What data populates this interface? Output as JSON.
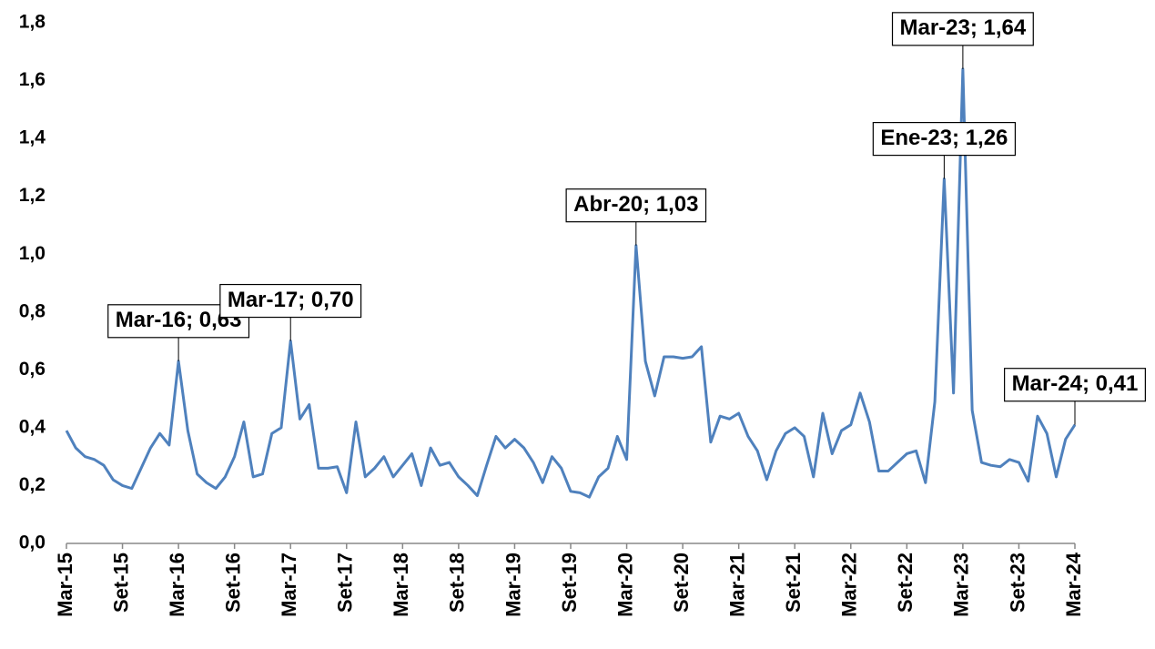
{
  "chart_data": {
    "type": "line",
    "categories": [
      "Mar-15",
      null,
      null,
      null,
      null,
      null,
      "Set-15",
      null,
      null,
      null,
      null,
      null,
      "Mar-16",
      null,
      null,
      null,
      null,
      null,
      "Set-16",
      null,
      null,
      null,
      null,
      null,
      "Mar-17",
      null,
      null,
      null,
      null,
      null,
      "Set-17",
      null,
      null,
      null,
      null,
      null,
      "Mar-18",
      null,
      null,
      null,
      null,
      null,
      "Set-18",
      null,
      null,
      null,
      null,
      null,
      "Mar-19",
      null,
      null,
      null,
      null,
      null,
      "Set-19",
      null,
      null,
      null,
      null,
      null,
      "Mar-20",
      null,
      null,
      null,
      null,
      null,
      "Set-20",
      null,
      null,
      null,
      null,
      null,
      "Mar-21",
      null,
      null,
      null,
      null,
      null,
      "Set-21",
      null,
      null,
      null,
      null,
      null,
      "Mar-22",
      null,
      null,
      null,
      null,
      null,
      "Set-22",
      null,
      null,
      null,
      null,
      null,
      "Mar-23",
      null,
      null,
      null,
      null,
      null,
      "Set-23",
      null,
      null,
      null,
      null,
      null,
      "Mar-24"
    ],
    "series": [
      {
        "color": "#4f81bd",
        "values": [
          0.39,
          0.33,
          0.3,
          0.29,
          0.27,
          0.22,
          0.2,
          0.19,
          0.26,
          0.33,
          0.38,
          0.34,
          0.63,
          0.39,
          0.24,
          0.21,
          0.19,
          0.23,
          0.3,
          0.42,
          0.23,
          0.24,
          0.38,
          0.4,
          0.7,
          0.43,
          0.48,
          0.26,
          0.26,
          0.265,
          0.175,
          0.42,
          0.23,
          0.26,
          0.3,
          0.23,
          0.27,
          0.31,
          0.2,
          0.33,
          0.27,
          0.28,
          0.23,
          0.2,
          0.165,
          0.27,
          0.37,
          0.33,
          0.36,
          0.33,
          0.28,
          0.21,
          0.3,
          0.26,
          0.18,
          0.175,
          0.16,
          0.23,
          0.26,
          0.37,
          0.29,
          1.03,
          0.63,
          0.51,
          0.645,
          0.645,
          0.64,
          0.645,
          0.68,
          0.35,
          0.44,
          0.43,
          0.45,
          0.37,
          0.32,
          0.22,
          0.32,
          0.38,
          0.4,
          0.37,
          0.23,
          0.45,
          0.31,
          0.39,
          0.41,
          0.52,
          0.42,
          0.25,
          0.25,
          0.28,
          0.31,
          0.32,
          0.21,
          0.49,
          1.26,
          0.52,
          1.64,
          0.46,
          0.28,
          0.27,
          0.265,
          0.29,
          0.28,
          0.215,
          0.44,
          0.38,
          0.23,
          0.36,
          0.41
        ],
        "value_labels": [
          null,
          null,
          null,
          null,
          null,
          null,
          null,
          null,
          null,
          null,
          null,
          null,
          "Mar-16; 0,63",
          null,
          null,
          null,
          null,
          null,
          null,
          null,
          null,
          null,
          null,
          null,
          "Mar-17; 0,70",
          null,
          null,
          null,
          null,
          null,
          null,
          null,
          null,
          null,
          null,
          null,
          null,
          null,
          null,
          null,
          null,
          null,
          null,
          null,
          null,
          null,
          null,
          null,
          null,
          null,
          null,
          null,
          null,
          null,
          null,
          null,
          null,
          null,
          null,
          null,
          null,
          "Abr-20; 1,03",
          null,
          null,
          null,
          null,
          null,
          null,
          null,
          null,
          null,
          null,
          null,
          null,
          null,
          null,
          null,
          null,
          null,
          null,
          null,
          null,
          null,
          null,
          null,
          null,
          null,
          null,
          null,
          null,
          null,
          null,
          null,
          null,
          "Ene-23; 1,26",
          null,
          "Mar-23; 1,64",
          null,
          null,
          null,
          null,
          null,
          null,
          null,
          null,
          null,
          null,
          null,
          "Mar-24; 0,41"
        ]
      }
    ],
    "ylim": [
      0,
      1.8
    ],
    "yticks": [
      {
        "value": 0,
        "label": "0,0"
      },
      {
        "value": 0.2,
        "label": "0,2"
      },
      {
        "value": 0.4,
        "label": "0,4"
      },
      {
        "value": 0.6,
        "label": "0,6"
      },
      {
        "value": 0.8,
        "label": "0,8"
      },
      {
        "value": 1.0,
        "label": "1,0"
      },
      {
        "value": 1.2,
        "label": "1,2"
      },
      {
        "value": 1.4,
        "label": "1,4"
      },
      {
        "value": 1.6,
        "label": "1,6"
      },
      {
        "value": 1.8,
        "label": "1,8"
      }
    ]
  }
}
